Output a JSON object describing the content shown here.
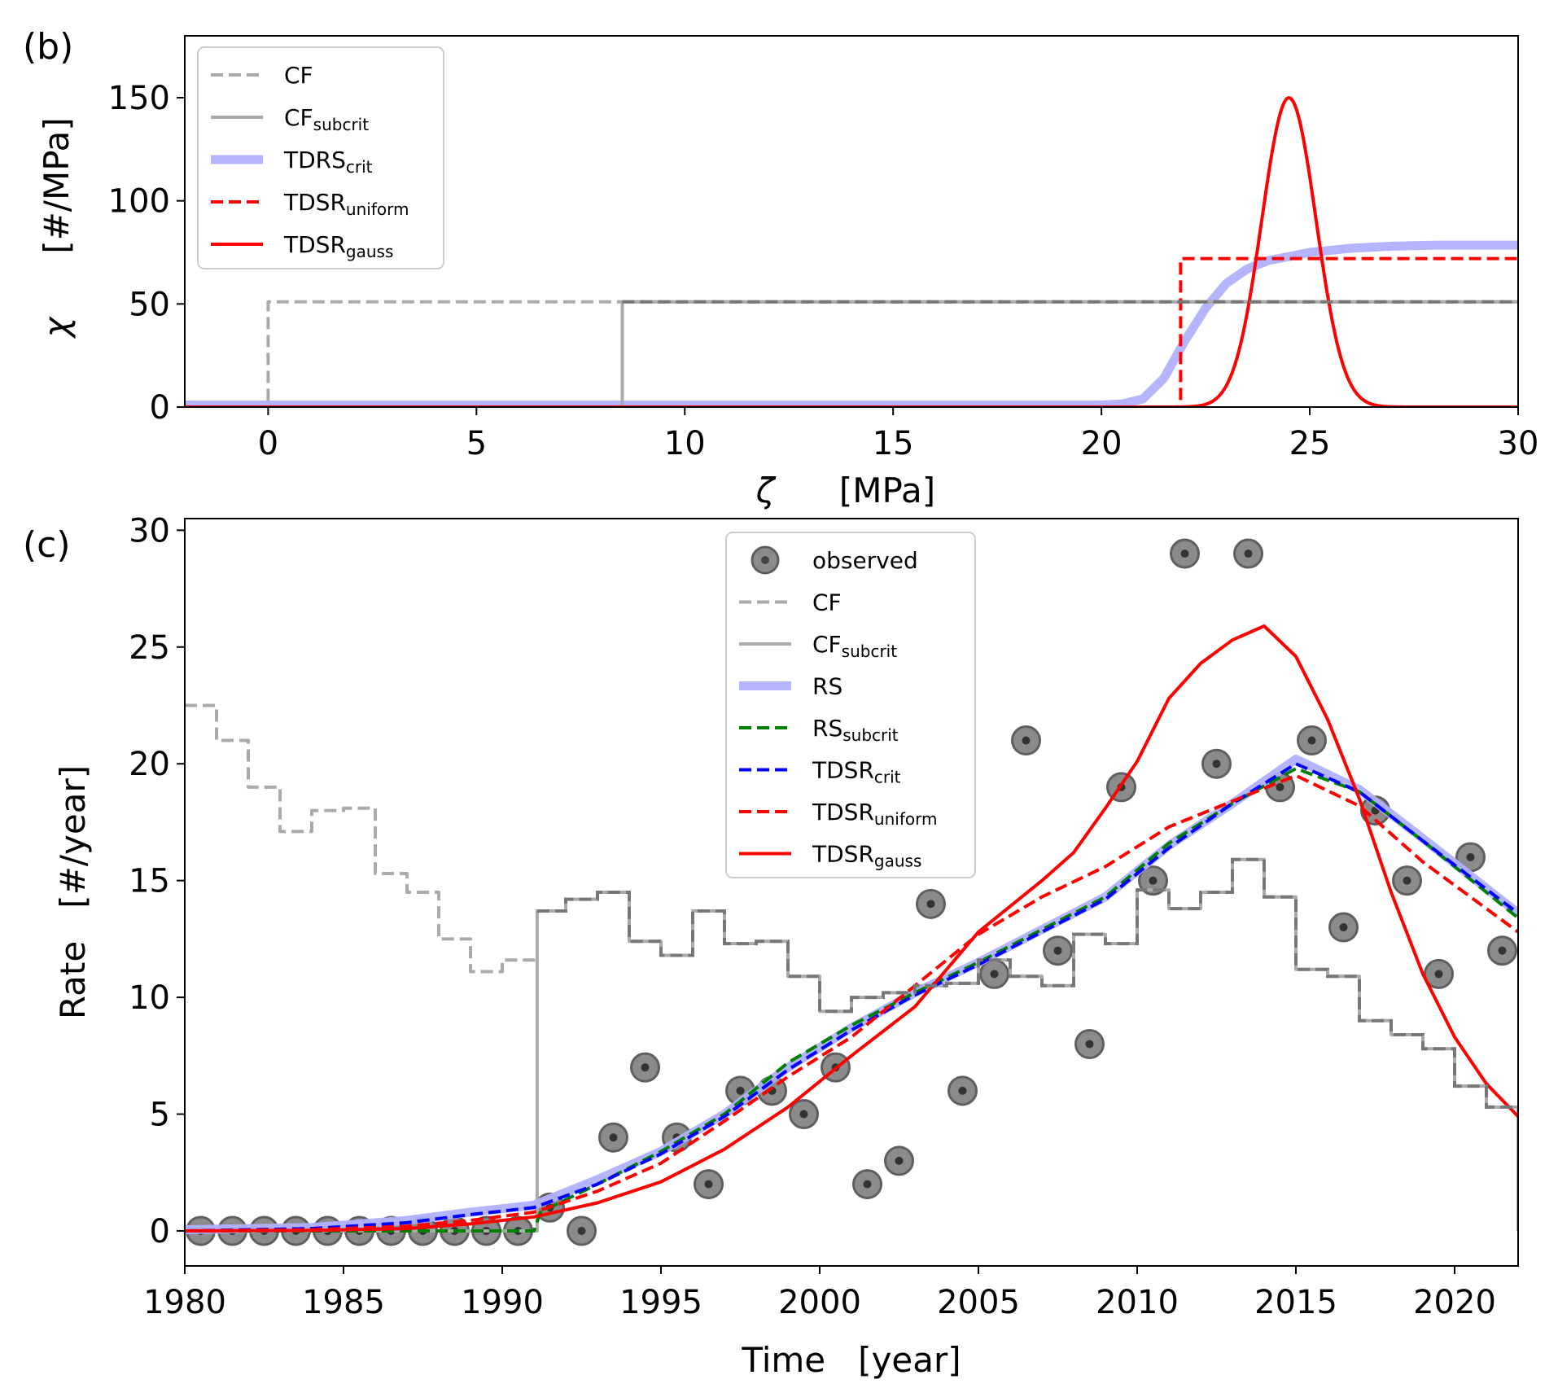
{
  "chart_data": [
    {
      "panel": "(b)",
      "type": "line",
      "xlabel_symbol": "ζ",
      "xlabel_unit": "[MPa]",
      "ylabel_symbol": "χ",
      "ylabel_unit": "[#/MPa]",
      "xlim": [
        -2,
        30
      ],
      "ylim": [
        0,
        180
      ],
      "xticks": [
        0,
        5,
        10,
        15,
        20,
        25,
        30
      ],
      "yticks": [
        0,
        50,
        100,
        150
      ],
      "legend_position": "upper-left",
      "series": [
        {
          "name": "CF",
          "name_base": "CF",
          "name_sub": "",
          "color": "#aaaaaa",
          "style": "dashed",
          "x": [
            -2,
            0,
            0,
            30
          ],
          "y": [
            0,
            0,
            51,
            51
          ]
        },
        {
          "name": "CF_subcrit",
          "name_base": "CF",
          "name_sub": "subcrit",
          "color": "#aaaaaa",
          "style": "solid",
          "x": [
            -2,
            8.5,
            8.5,
            30
          ],
          "y": [
            0,
            0,
            51,
            51
          ]
        },
        {
          "name": "TDRS_crit",
          "name_base": "TDRS",
          "name_sub": "crit",
          "color": "#b0b0ff",
          "style": "thick",
          "x": [
            -2,
            20,
            20.5,
            21,
            21.5,
            22,
            22.5,
            23,
            23.5,
            24,
            25,
            26,
            27,
            28,
            30
          ],
          "y": [
            1,
            1,
            1.5,
            4,
            14,
            32,
            48,
            60,
            67,
            71,
            75,
            77,
            78,
            78.5,
            78.5
          ]
        },
        {
          "name": "TDSR_uniform",
          "name_base": "TDSR",
          "name_sub": "uniform",
          "color": "#ff0000",
          "style": "dashed",
          "x": [
            -2,
            21.9,
            21.9,
            30
          ],
          "y": [
            0,
            0,
            72,
            72
          ]
        },
        {
          "name": "TDSR_gauss",
          "name_base": "TDSR",
          "name_sub": "gauss",
          "color": "#ff0000",
          "style": "solid",
          "gauss": {
            "mu": 24.5,
            "sigma": 0.65,
            "amp": 150
          }
        }
      ]
    },
    {
      "panel": "(c)",
      "type": "line",
      "xlabel": "Time   [year]",
      "ylabel": "Rate   [#/year]",
      "xlim": [
        1980,
        2022
      ],
      "ylim": [
        -1.5,
        30.5
      ],
      "xticks": [
        1980,
        1985,
        1990,
        1995,
        2000,
        2005,
        2010,
        2015,
        2020
      ],
      "yticks": [
        0,
        5,
        10,
        15,
        20,
        25,
        30
      ],
      "legend_position": "upper-center",
      "observed": {
        "name": "observed",
        "x": [
          1980.5,
          1981.5,
          1982.5,
          1983.5,
          1984.5,
          1985.5,
          1986.5,
          1987.5,
          1988.5,
          1989.5,
          1990.5,
          1991.5,
          1992.5,
          1993.5,
          1994.5,
          1995.5,
          1996.5,
          1997.5,
          1998.5,
          1999.5,
          2000.5,
          2001.5,
          2002.5,
          2003.5,
          2004.5,
          2005.5,
          2006.5,
          2007.5,
          2008.5,
          2009.5,
          2010.5,
          2011.5,
          2012.5,
          2013.5,
          2014.5,
          2015.5,
          2016.5,
          2017.5,
          2018.5,
          2019.5,
          2020.5,
          2021.5
        ],
        "y": [
          0,
          0,
          0,
          0,
          0,
          0,
          0,
          0,
          0,
          0,
          0,
          1,
          0,
          4,
          7,
          4,
          2,
          6,
          6,
          5,
          7,
          2,
          3,
          14,
          6,
          11,
          21,
          12,
          8,
          19,
          15,
          29,
          20,
          29,
          19,
          21,
          13,
          18,
          15,
          11,
          16,
          12
        ]
      },
      "series": [
        {
          "name": "CF",
          "name_base": "CF",
          "name_sub": "",
          "color": "#aaaaaa",
          "style": "dashed",
          "step": true,
          "edges": [
            1980,
            1981,
            1982,
            1983,
            1984,
            1985,
            1986,
            1987,
            1988,
            1989,
            1990,
            1991.1
          ],
          "values": [
            22.5,
            21,
            19,
            17.1,
            18,
            18.1,
            15.3,
            14.5,
            12.5,
            11.1,
            11.6
          ]
        },
        {
          "name": "CF_subcrit",
          "name_base": "CF",
          "name_sub": "subcrit",
          "color": "#aaaaaa",
          "style": "solid",
          "step": true,
          "edges": [
            1980,
            1991.1,
            1992,
            1993,
            1994,
            1995,
            1996,
            1997,
            1998,
            1999,
            2000,
            2001,
            2002,
            2003,
            2004,
            2005,
            2006,
            2007,
            2008,
            2009,
            2010,
            2011,
            2012,
            2013,
            2014,
            2015,
            2016,
            2017,
            2018,
            2019,
            2020,
            2021,
            2022
          ],
          "values": [
            0,
            13.7,
            14.2,
            14.5,
            12.4,
            11.8,
            13.7,
            12.3,
            12.4,
            10.9,
            9.4,
            10,
            10.2,
            10.5,
            10.6,
            11.6,
            10.9,
            10.5,
            12.7,
            12.3,
            14.6,
            13.8,
            14.5,
            15.9,
            14.3,
            11.2,
            10.9,
            9,
            8.4,
            7.8,
            6.2,
            5.3
          ]
        },
        {
          "name": "RS",
          "name_base": "RS",
          "name_sub": "",
          "color": "#b0b0ff",
          "style": "thick",
          "x": [
            1980,
            1984,
            1987,
            1989,
            1991,
            1993,
            1995,
            1997,
            1999,
            2001,
            2003,
            2005,
            2007,
            2009,
            2011,
            2013,
            2015,
            2017,
            2019,
            2022
          ],
          "y": [
            0.05,
            0.15,
            0.45,
            0.8,
            1.1,
            2.2,
            3.4,
            5,
            7,
            8.7,
            10.2,
            11.5,
            12.9,
            14.3,
            16.5,
            18.3,
            20.2,
            18.9,
            16.8,
            13.6
          ]
        },
        {
          "name": "RS_subcrit",
          "name_base": "RS",
          "name_sub": "subcrit",
          "color": "#008000",
          "style": "dashed",
          "x": [
            1980,
            1991,
            1991.2,
            1993,
            1995,
            1997,
            1999,
            2001,
            2003,
            2005,
            2007,
            2009,
            2011,
            2013,
            2015,
            2017,
            2019,
            2022
          ],
          "y": [
            0,
            0,
            0.8,
            2,
            3.4,
            5,
            7.2,
            8.8,
            10.2,
            11.5,
            12.9,
            14.3,
            16.6,
            18.3,
            19.8,
            18.8,
            16.7,
            13.4
          ]
        },
        {
          "name": "TDSR_crit",
          "name_base": "TDSR",
          "name_sub": "crit",
          "color": "#0000ff",
          "style": "dashed",
          "x": [
            1980,
            1984,
            1987,
            1989,
            1991,
            1993,
            1995,
            1997,
            1999,
            2001,
            2003,
            2005,
            2007,
            2009,
            2011,
            2013,
            2015,
            2017,
            2019,
            2022
          ],
          "y": [
            0,
            0.1,
            0.35,
            0.7,
            1,
            2,
            3.3,
            4.9,
            6.9,
            8.6,
            10.1,
            11.4,
            12.8,
            14.2,
            16.4,
            18.3,
            20,
            18.8,
            16.7,
            13.6
          ]
        },
        {
          "name": "TDSR_uniform",
          "name_base": "TDSR",
          "name_sub": "uniform",
          "color": "#ff0000",
          "style": "dashed",
          "x": [
            1980,
            1984,
            1987,
            1989,
            1991,
            1993,
            1995,
            1997,
            1999,
            2001,
            2003,
            2005,
            2007,
            2009,
            2011,
            2013,
            2015,
            2017,
            2019,
            2022
          ],
          "y": [
            0,
            0.05,
            0.2,
            0.45,
            0.8,
            1.7,
            2.9,
            4.7,
            6.6,
            8.3,
            10.5,
            12.7,
            14.3,
            15.6,
            17.3,
            18.4,
            19.5,
            18.2,
            15.8,
            12.8
          ]
        },
        {
          "name": "TDSR_gauss",
          "name_base": "TDSR",
          "name_sub": "gauss",
          "color": "#ff0000",
          "style": "solid",
          "x": [
            1980,
            1984,
            1987,
            1989,
            1991,
            1993,
            1995,
            1997,
            1999,
            2001,
            2003,
            2005,
            2007,
            2008,
            2009,
            2010,
            2011,
            2012,
            2013,
            2014,
            2015,
            2016,
            2017,
            2018,
            2019,
            2020,
            2021,
            2022
          ],
          "y": [
            0,
            0.02,
            0.1,
            0.3,
            0.6,
            1.2,
            2.1,
            3.5,
            5.3,
            7.5,
            9.6,
            12.8,
            15,
            16.2,
            18.1,
            20.1,
            22.8,
            24.3,
            25.3,
            25.9,
            24.6,
            21.9,
            18.5,
            14.5,
            11,
            8.3,
            6.3,
            4.9
          ]
        }
      ]
    }
  ]
}
